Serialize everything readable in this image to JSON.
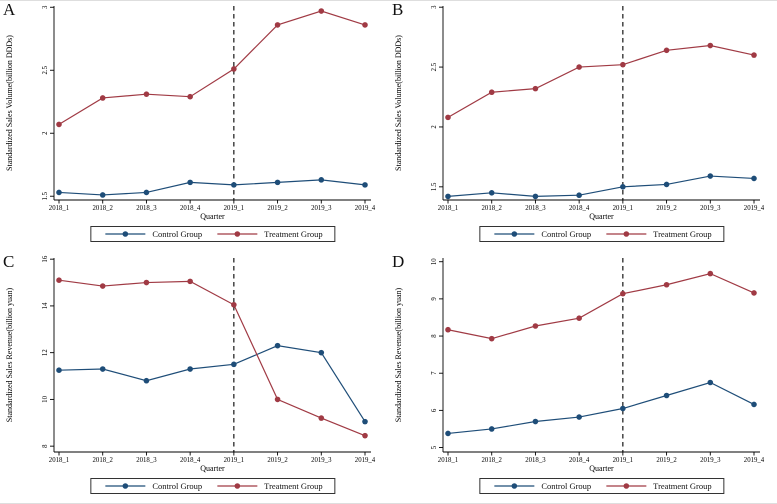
{
  "figure": {
    "colors": {
      "control": "#1e4d78",
      "treatment": "#a03a44",
      "axis": "#000000",
      "dashed_line": "#000000",
      "background": "#ffffff"
    }
  },
  "chart_data": [
    {
      "type": "line",
      "panel_label": "A",
      "title": "",
      "xlabel": "Quarter",
      "ylabel": "Standardized Sales Volume(billion DDDs)",
      "categories": [
        "2018_1",
        "2018_2",
        "2018_3",
        "2018_4",
        "2019_1",
        "2019_2",
        "2019_3",
        "2019_4"
      ],
      "series": [
        {
          "name": "Control Group",
          "color": "#1e4d78",
          "values": [
            1.53,
            1.51,
            1.53,
            1.61,
            1.59,
            1.61,
            1.63,
            1.59
          ]
        },
        {
          "name": "Treatment Group",
          "color": "#a03a44",
          "values": [
            2.07,
            2.28,
            2.31,
            2.29,
            2.51,
            2.86,
            2.97,
            2.86
          ]
        }
      ],
      "yticks": [
        1.5,
        2,
        2.5,
        3
      ],
      "ylim": [
        1.47,
        3.01
      ],
      "dashed_vline_at": "2019_1",
      "legend_position": "bottom",
      "grid": false
    },
    {
      "type": "line",
      "panel_label": "B",
      "title": "",
      "xlabel": "Quarter",
      "ylabel": "Standardized Sales Volume(billion DDDs)",
      "categories": [
        "2018_1",
        "2018_2",
        "2018_3",
        "2018_4",
        "2019_1",
        "2019_2",
        "2019_3",
        "2019_4"
      ],
      "series": [
        {
          "name": "Control Group",
          "color": "#1e4d78",
          "values": [
            1.42,
            1.45,
            1.42,
            1.43,
            1.5,
            1.52,
            1.59,
            1.57
          ]
        },
        {
          "name": "Treatment Group",
          "color": "#a03a44",
          "values": [
            2.08,
            2.29,
            2.32,
            2.5,
            2.52,
            2.64,
            2.68,
            2.6
          ]
        }
      ],
      "yticks": [
        1.5,
        2,
        2.5,
        3
      ],
      "ylim": [
        1.39,
        3.01
      ],
      "dashed_vline_at": "2019_1",
      "legend_position": "bottom",
      "grid": false
    },
    {
      "type": "line",
      "panel_label": "C",
      "title": "",
      "xlabel": "Quarter",
      "ylabel": "Standardized Sales Revenue(billion yuan)",
      "categories": [
        "2018_1",
        "2018_2",
        "2018_3",
        "2018_4",
        "2019_1",
        "2019_2",
        "2019_3",
        "2019_4"
      ],
      "series": [
        {
          "name": "Control Group",
          "color": "#1e4d78",
          "values": [
            11.25,
            11.3,
            10.8,
            11.3,
            11.5,
            12.3,
            12.0,
            9.05
          ]
        },
        {
          "name": "Treatment Group",
          "color": "#a03a44",
          "values": [
            15.1,
            14.85,
            15.0,
            15.05,
            14.05,
            10.0,
            9.2,
            8.45
          ]
        }
      ],
      "yticks": [
        8,
        10,
        12,
        14,
        16
      ],
      "ylim": [
        7.75,
        16.05
      ],
      "dashed_vline_at": "2019_1",
      "legend_position": "bottom",
      "grid": false
    },
    {
      "type": "line",
      "panel_label": "D",
      "title": "",
      "xlabel": "Quarter",
      "ylabel": "Standardized Sales Revenue(billion yuan)",
      "categories": [
        "2018_1",
        "2018_2",
        "2018_3",
        "2018_4",
        "2019_1",
        "2019_2",
        "2019_3",
        "2019_4"
      ],
      "series": [
        {
          "name": "Control Group",
          "color": "#1e4d78",
          "values": [
            5.38,
            5.5,
            5.7,
            5.82,
            6.05,
            6.4,
            6.75,
            6.16
          ]
        },
        {
          "name": "Treatment Group",
          "color": "#a03a44",
          "values": [
            8.17,
            7.93,
            8.27,
            8.48,
            9.14,
            9.38,
            9.68,
            9.16
          ]
        }
      ],
      "yticks": [
        5,
        6,
        7,
        8,
        9,
        10
      ],
      "ylim": [
        4.88,
        10.1
      ],
      "dashed_vline_at": "2019_1",
      "legend_position": "bottom",
      "grid": false
    }
  ]
}
